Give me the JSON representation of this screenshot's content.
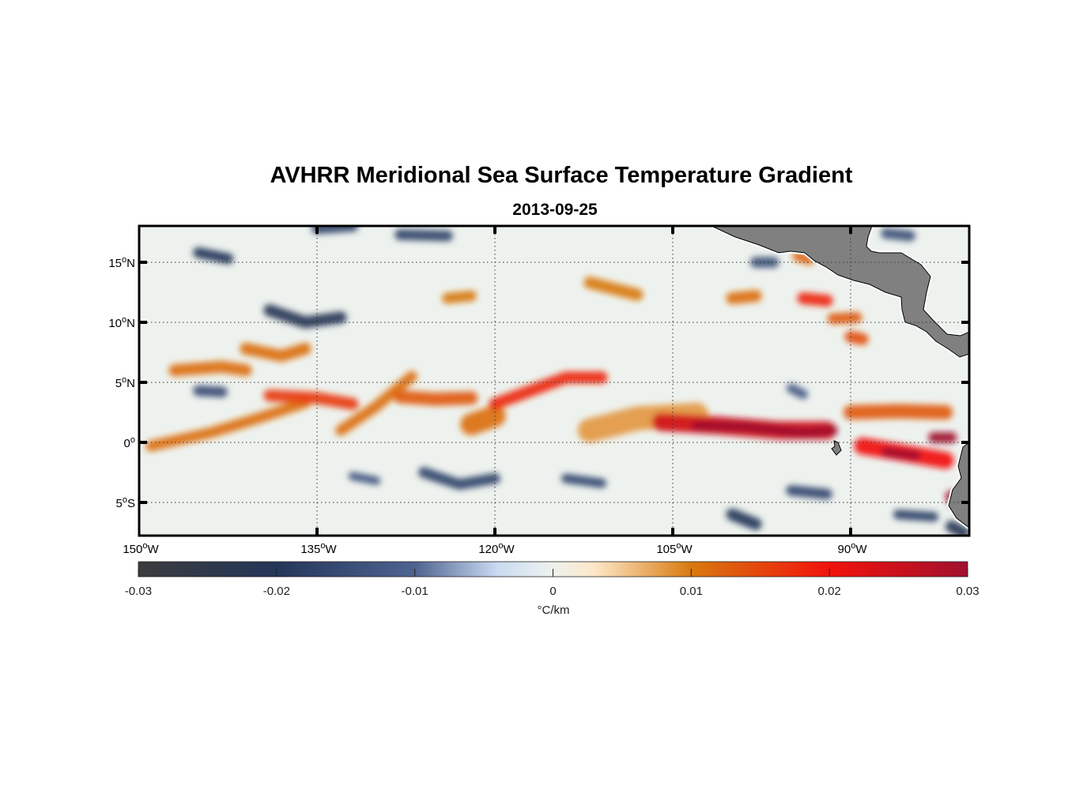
{
  "title": "AVHRR Meridional Sea Surface Temperature Gradient",
  "subtitle": "2013-09-25",
  "deg_mark": "o",
  "chart_data": {
    "type": "heatmap",
    "lon_range": [
      -150,
      -80
    ],
    "lat_range": [
      -8,
      18
    ],
    "grid": true,
    "x_ticks": [
      {
        "value": -150,
        "num": "150",
        "hem": "W"
      },
      {
        "value": -135,
        "num": "135",
        "hem": "W"
      },
      {
        "value": -120,
        "num": "120",
        "hem": "W"
      },
      {
        "value": -105,
        "num": "105",
        "hem": "W"
      },
      {
        "value": -90,
        "num": "90",
        "hem": "W"
      }
    ],
    "y_ticks": [
      {
        "value": 15,
        "num": "15",
        "hem": "N"
      },
      {
        "value": 10,
        "num": "10",
        "hem": "N"
      },
      {
        "value": 5,
        "num": "5",
        "hem": "N"
      },
      {
        "value": 0,
        "num": "0",
        "hem": ""
      },
      {
        "value": -5,
        "num": "5",
        "hem": "S"
      }
    ],
    "colorbar": {
      "range": [
        -0.03,
        0.03
      ],
      "ticks": [
        "-0.03",
        "-0.02",
        "-0.01",
        "0",
        "0.01",
        "0.02",
        "0.03"
      ],
      "label": "°C/km",
      "colormap": [
        [
          -0.03,
          "#3b3b3d"
        ],
        [
          -0.02,
          "#24365a"
        ],
        [
          -0.01,
          "#4e6390"
        ],
        [
          -0.004,
          "#c9dbf1"
        ],
        [
          0,
          "#eef2ee"
        ],
        [
          0.003,
          "#fde7c8"
        ],
        [
          0.01,
          "#d8790e"
        ],
        [
          0.02,
          "#f2120c"
        ],
        [
          0.03,
          "#a0102e"
        ]
      ]
    },
    "features": [
      {
        "value": 0.011,
        "path": [
          [
            -149,
            -0.3
          ],
          [
            -144,
            0.8
          ],
          [
            -140,
            2
          ],
          [
            -136,
            3.3
          ]
        ],
        "width": 0.9
      },
      {
        "value": 0.011,
        "path": [
          [
            -147,
            6
          ],
          [
            -143,
            6.3
          ],
          [
            -141,
            6
          ]
        ],
        "width": 1.0
      },
      {
        "value": 0.011,
        "path": [
          [
            -141,
            7.8
          ],
          [
            -138,
            7.2
          ],
          [
            -136,
            7.8
          ]
        ],
        "width": 1.0
      },
      {
        "value": 0.016,
        "path": [
          [
            -139,
            3.9
          ],
          [
            -135,
            3.7
          ],
          [
            -132,
            3.2
          ]
        ],
        "width": 1.0
      },
      {
        "value": 0.011,
        "path": [
          [
            -133,
            1
          ],
          [
            -130,
            3
          ],
          [
            -127,
            5.5
          ]
        ],
        "width": 0.9
      },
      {
        "value": 0.013,
        "path": [
          [
            -128,
            3.8
          ],
          [
            -125,
            3.6
          ],
          [
            -122,
            3.7
          ]
        ],
        "width": 1.1
      },
      {
        "value": 0.011,
        "path": [
          [
            -122,
            1.5
          ],
          [
            -120,
            2.2
          ]
        ],
        "width": 1.8
      },
      {
        "value": 0.018,
        "path": [
          [
            -120,
            3.2
          ],
          [
            -117,
            4.3
          ],
          [
            -114,
            5.4
          ],
          [
            -111,
            5.4
          ]
        ],
        "width": 1.0
      },
      {
        "value": 0.008,
        "path": [
          [
            -112,
            1
          ],
          [
            -108,
            2
          ],
          [
            -103,
            2.3
          ]
        ],
        "width": 2.0
      },
      {
        "value": 0.024,
        "path": [
          [
            -106,
            1.7
          ],
          [
            -101,
            1.4
          ],
          [
            -96,
            1
          ],
          [
            -92,
            1
          ]
        ],
        "width": 1.5
      },
      {
        "value": 0.03,
        "path": [
          [
            -103,
            1.4
          ],
          [
            -99,
            1.3
          ],
          [
            -94,
            0.8
          ],
          [
            -91.5,
            1
          ]
        ],
        "width": 0.8
      },
      {
        "value": 0.013,
        "path": [
          [
            -90,
            2.5
          ],
          [
            -86,
            2.6
          ],
          [
            -82,
            2.5
          ]
        ],
        "width": 1.2
      },
      {
        "value": 0.02,
        "path": [
          [
            -89,
            -0.3
          ],
          [
            -86,
            -0.8
          ],
          [
            -82,
            -1.5
          ]
        ],
        "width": 1.4
      },
      {
        "value": 0.03,
        "path": [
          [
            -87,
            -0.8
          ],
          [
            -84.5,
            -1.1
          ]
        ],
        "width": 0.8
      },
      {
        "value": 0.03,
        "path": [
          [
            -83,
            0.4
          ],
          [
            -81.5,
            0.4
          ]
        ],
        "width": 0.9
      },
      {
        "value": 0.03,
        "path": [
          [
            -81.5,
            -4.5
          ],
          [
            -81.2,
            -5
          ]
        ],
        "width": 1.0
      },
      {
        "value": 0.01,
        "path": [
          [
            -124,
            12
          ],
          [
            -122,
            12.2
          ]
        ],
        "width": 0.9
      },
      {
        "value": 0.01,
        "path": [
          [
            -112,
            13.3
          ],
          [
            -108,
            12.3
          ]
        ],
        "width": 1.0
      },
      {
        "value": 0.011,
        "path": [
          [
            -100,
            12
          ],
          [
            -98,
            12.2
          ]
        ],
        "width": 1.0
      },
      {
        "value": 0.018,
        "path": [
          [
            -94,
            12
          ],
          [
            -92,
            11.8
          ]
        ],
        "width": 1.0
      },
      {
        "value": 0.013,
        "path": [
          [
            -91.5,
            10.3
          ],
          [
            -89.5,
            10.4
          ]
        ],
        "width": 0.9
      },
      {
        "value": 0.014,
        "path": [
          [
            -90,
            8.8
          ],
          [
            -89,
            8.6
          ]
        ],
        "width": 1.0
      },
      {
        "value": 0.012,
        "path": [
          [
            -94.5,
            15.5
          ],
          [
            -93.5,
            15.2
          ]
        ],
        "width": 0.8
      },
      {
        "value": -0.02,
        "path": [
          [
            -145,
            15.8
          ],
          [
            -142.5,
            15.3
          ]
        ],
        "width": 0.9
      },
      {
        "value": -0.021,
        "path": [
          [
            -139,
            11
          ],
          [
            -136,
            10
          ],
          [
            -133,
            10.4
          ]
        ],
        "width": 1.0
      },
      {
        "value": -0.017,
        "path": [
          [
            -135,
            17.8
          ],
          [
            -132,
            18
          ]
        ],
        "width": 0.9
      },
      {
        "value": -0.017,
        "path": [
          [
            -128,
            17.3
          ],
          [
            -124,
            17.2
          ]
        ],
        "width": 0.9
      },
      {
        "value": -0.017,
        "path": [
          [
            -126,
            -2.5
          ],
          [
            -123,
            -3.5
          ],
          [
            -120,
            -3
          ]
        ],
        "width": 0.9
      },
      {
        "value": -0.013,
        "path": [
          [
            -132,
            -2.8
          ],
          [
            -130,
            -3.2
          ]
        ],
        "width": 0.7
      },
      {
        "value": -0.015,
        "path": [
          [
            -145,
            4.3
          ],
          [
            -143,
            4.2
          ]
        ],
        "width": 0.9
      },
      {
        "value": -0.016,
        "path": [
          [
            -114,
            -3
          ],
          [
            -111,
            -3.4
          ]
        ],
        "width": 0.8
      },
      {
        "value": -0.02,
        "path": [
          [
            -100,
            -6
          ],
          [
            -98,
            -6.8
          ]
        ],
        "width": 1.0
      },
      {
        "value": -0.016,
        "path": [
          [
            -95,
            -4
          ],
          [
            -92,
            -4.3
          ]
        ],
        "width": 0.9
      },
      {
        "value": -0.018,
        "path": [
          [
            -86,
            -6
          ],
          [
            -83,
            -6.2
          ]
        ],
        "width": 0.8
      },
      {
        "value": -0.022,
        "path": [
          [
            -81.5,
            -7
          ],
          [
            -80.5,
            -7.5
          ]
        ],
        "width": 1.0
      },
      {
        "value": -0.014,
        "path": [
          [
            -98,
            15
          ],
          [
            -96.5,
            15
          ]
        ],
        "width": 0.9
      },
      {
        "value": -0.014,
        "path": [
          [
            -87,
            17.4
          ],
          [
            -85,
            17.2
          ]
        ],
        "width": 0.9
      },
      {
        "value": -0.012,
        "path": [
          [
            -95,
            4.5
          ],
          [
            -94,
            4
          ]
        ],
        "width": 0.8
      }
    ]
  }
}
